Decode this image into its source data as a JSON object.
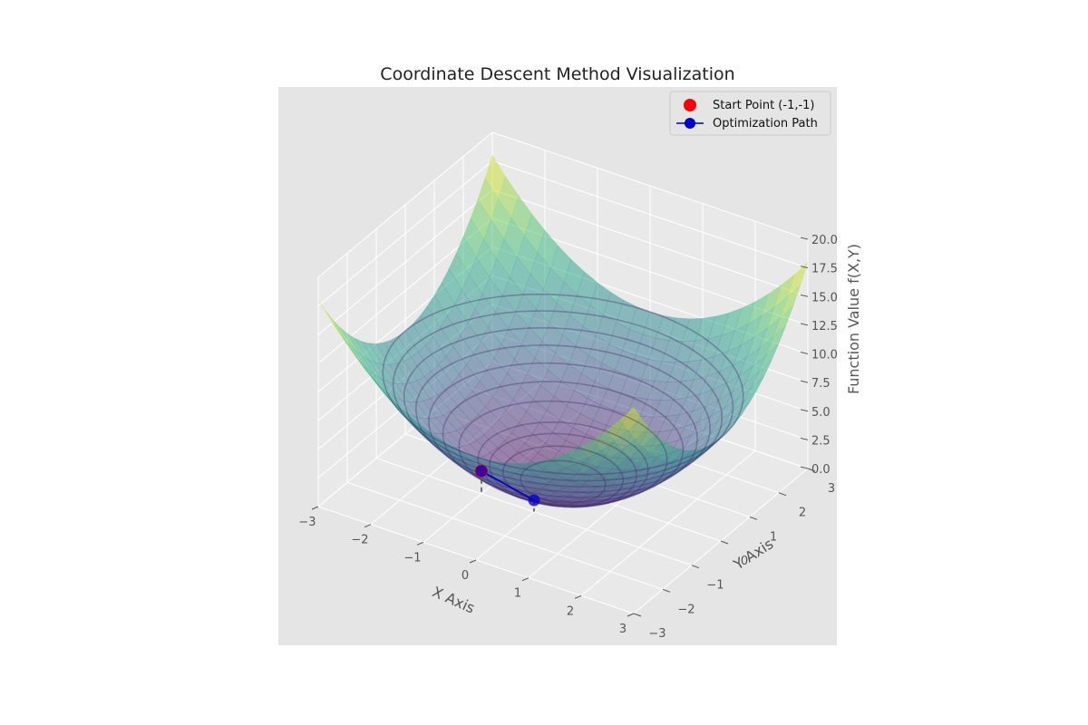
{
  "chart_data": {
    "type": "surface3d",
    "title": "Coordinate Descent Method Visualization",
    "xlabel": "X Axis",
    "ylabel": "Y Axis",
    "zlabel": "Function Value f(X,Y)",
    "xlim": [
      -3,
      3
    ],
    "ylim": [
      -3,
      3
    ],
    "zlim": [
      0,
      20
    ],
    "x_ticks": [
      "−3",
      "−2",
      "−1",
      "0",
      "1",
      "2",
      "3"
    ],
    "y_ticks": [
      "−3",
      "−2",
      "−1",
      "0",
      "1",
      "2",
      "3"
    ],
    "z_ticks": [
      "0.0",
      "2.5",
      "5.0",
      "7.5",
      "10.0",
      "12.5",
      "15.0",
      "17.5",
      "20.0"
    ],
    "surface_colormap": "viridis",
    "surface_alpha": 0.5,
    "grid": true,
    "background": "#e5e5e5",
    "start_point": {
      "x": -1,
      "y": -1,
      "z": 2,
      "color": "#ff0000"
    },
    "path": {
      "color": "#0000cc",
      "points": [
        {
          "x": -1,
          "y": -1,
          "z": 2
        },
        {
          "x": 0,
          "y": -1,
          "z": 1
        }
      ]
    },
    "legend": {
      "position": "upper right",
      "entries": [
        {
          "label": "Start Point (-1,-1)",
          "marker": "circle",
          "color": "#ff0000"
        },
        {
          "label": "Optimization Path",
          "marker": "line-circle",
          "color": "#0000cc"
        }
      ]
    }
  }
}
